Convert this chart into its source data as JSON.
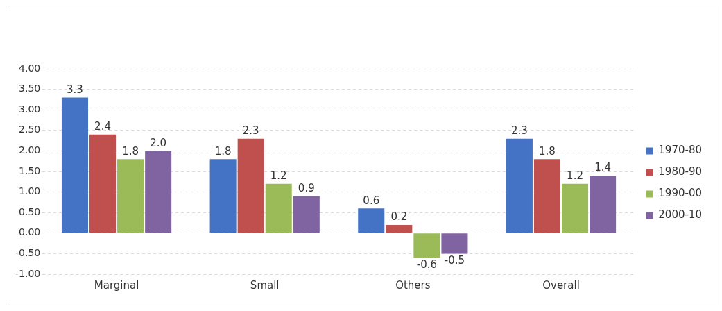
{
  "chart_data": {
    "type": "bar",
    "categories": [
      "Marginal",
      "Small",
      "Others",
      "Overall"
    ],
    "series": [
      {
        "name": "1970-80",
        "color": "#4472c4",
        "values": [
          3.3,
          1.8,
          0.6,
          2.3
        ],
        "value_labels": [
          "3.3",
          "1.8",
          "0.6",
          "2.3"
        ]
      },
      {
        "name": "1980-90",
        "color": "#c0504d",
        "values": [
          2.4,
          2.3,
          0.2,
          1.8
        ],
        "value_labels": [
          "2.4",
          "2.3",
          "0.2",
          "1.8"
        ]
      },
      {
        "name": "1990-00",
        "color": "#9bbb59",
        "values": [
          1.8,
          1.2,
          -0.6,
          1.2
        ],
        "value_labels": [
          "1.8",
          "1.2",
          "-0.6",
          "1.2"
        ]
      },
      {
        "name": "2000-10",
        "color": "#8064a2",
        "values": [
          2.0,
          0.9,
          -0.5,
          1.4
        ],
        "value_labels": [
          "2.0",
          "0.9",
          "-0.5",
          "1.4"
        ]
      }
    ],
    "ylim": [
      -1,
      4
    ],
    "yticks": [
      {
        "value": -1,
        "label": "-1.00"
      },
      {
        "value": -0.5,
        "label": "-0.50"
      },
      {
        "value": 0,
        "label": "0.00"
      },
      {
        "value": 0.5,
        "label": "0.50"
      },
      {
        "value": 1,
        "label": "1.00"
      },
      {
        "value": 1.5,
        "label": "1.50"
      },
      {
        "value": 2,
        "label": "2.00"
      },
      {
        "value": 2.5,
        "label": "2.50"
      },
      {
        "value": 3,
        "label": "3.00"
      },
      {
        "value": 3.5,
        "label": "3.50"
      },
      {
        "value": 4,
        "label": "4.00"
      }
    ],
    "grid": "y",
    "legend": "right"
  }
}
